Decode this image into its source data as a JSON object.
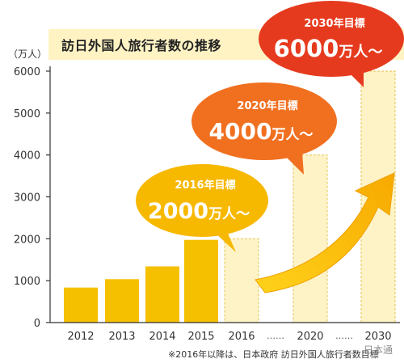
{
  "chart_data": {
    "type": "bar",
    "title": "訪日外国人旅行者数の推移",
    "unit_label": "（万人）",
    "ylim": [
      0,
      6000
    ],
    "yticks": [
      "0",
      "1000",
      "2000",
      "3000",
      "4000",
      "5000",
      "6000"
    ],
    "categories": [
      "2012",
      "2013",
      "2014",
      "2015",
      "2016",
      "2020",
      "2030"
    ],
    "x_separator": "……",
    "series": [
      {
        "values": [
          836,
          1036,
          1341,
          1974,
          null,
          null,
          null
        ],
        "color": "#f5c000"
      },
      {
        "values": [
          null,
          null,
          null,
          null,
          2000,
          4000,
          6000
        ],
        "color": "#fdf3c6"
      }
    ],
    "targets": [
      {
        "title": "2016年目標",
        "value": "2000",
        "unit": "万人〜",
        "color": "#f7b800"
      },
      {
        "title": "2020年目標",
        "value": "4000",
        "unit": "万人〜",
        "color": "#f07020"
      },
      {
        "title": "2030年目標",
        "value": "6000",
        "unit": "万人〜",
        "color": "#e63a1e"
      }
    ],
    "footnote": "※2016年以降は、日本政府 訪日外国人旅行者数目標",
    "grid": false,
    "legend": "none"
  },
  "watermark": "日本通"
}
